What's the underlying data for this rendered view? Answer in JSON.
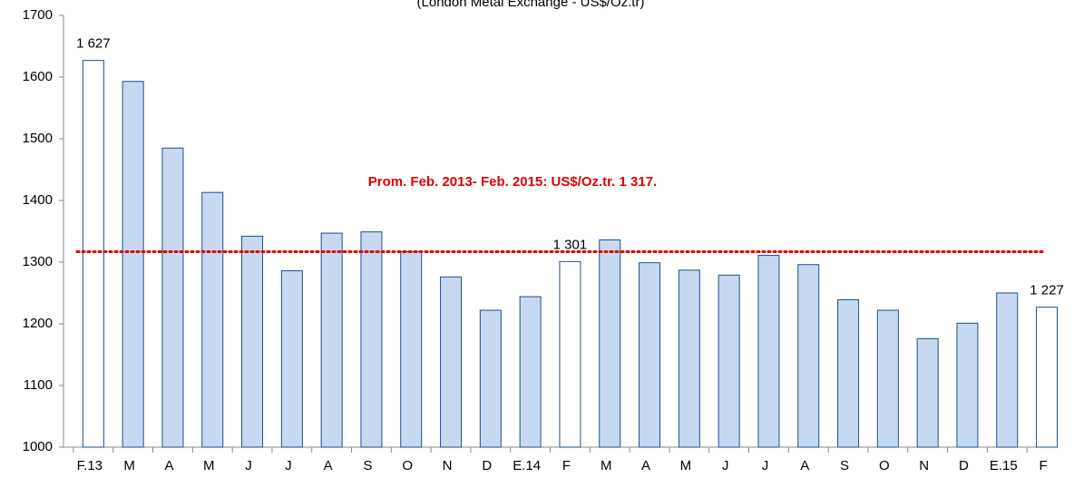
{
  "chart_data": {
    "type": "bar",
    "subtitle": "(London Metal Exchange - US$/Oz.tr)",
    "categories": [
      "F.13",
      "M",
      "A",
      "M",
      "J",
      "J",
      "A",
      "S",
      "O",
      "N",
      "D",
      "E.14",
      "F",
      "M",
      "A",
      "M",
      "J",
      "J",
      "A",
      "S",
      "O",
      "N",
      "D",
      "E.15",
      "F"
    ],
    "values": [
      1627,
      1593,
      1485,
      1413,
      1342,
      1286,
      1347,
      1349,
      1317,
      1276,
      1222,
      1244,
      1301,
      1336,
      1299,
      1287,
      1279,
      1311,
      1296,
      1239,
      1222,
      1176,
      1201,
      1250,
      1227
    ],
    "value_labels": [
      "1 627",
      null,
      null,
      null,
      null,
      null,
      null,
      null,
      null,
      null,
      null,
      null,
      "1 301",
      null,
      null,
      null,
      null,
      null,
      null,
      null,
      null,
      null,
      null,
      null,
      "1 227"
    ],
    "colors": [
      "#ffffff",
      "#c6d9f1",
      "#c6d9f1",
      "#c6d9f1",
      "#c6d9f1",
      "#c6d9f1",
      "#c6d9f1",
      "#c6d9f1",
      "#c6d9f1",
      "#c6d9f1",
      "#c6d9f1",
      "#c6d9f1",
      "#ffffff",
      "#c6d9f1",
      "#c6d9f1",
      "#c6d9f1",
      "#c6d9f1",
      "#c6d9f1",
      "#c6d9f1",
      "#c6d9f1",
      "#c6d9f1",
      "#c6d9f1",
      "#c6d9f1",
      "#c6d9f1",
      "#ffffff"
    ],
    "edge_color": "#1f4e8c",
    "reference_line": {
      "value": 1317,
      "color": "#e00000",
      "label": "Prom. Feb. 2013- Feb. 2015: US$/Oz.tr. 1 317."
    },
    "ylim": [
      1000,
      1700
    ],
    "yticks": [
      1000,
      1100,
      1200,
      1300,
      1400,
      1500,
      1600,
      1700
    ],
    "grid": false
  }
}
